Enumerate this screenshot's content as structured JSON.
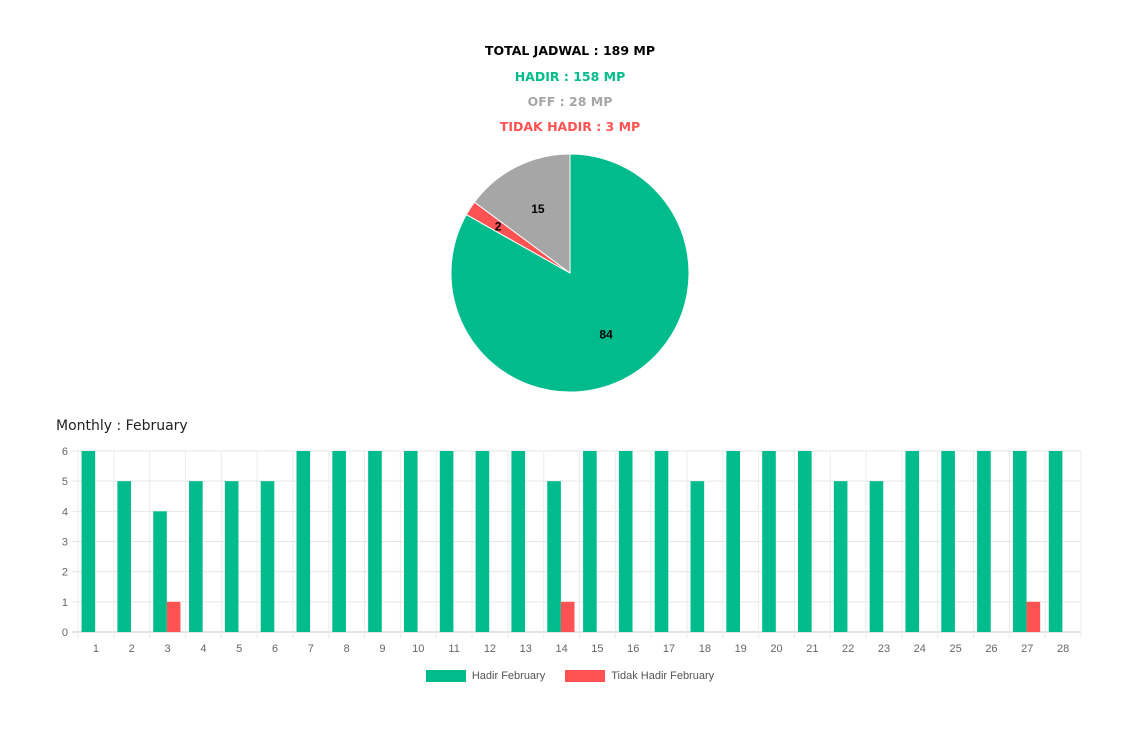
{
  "summary": {
    "total": "TOTAL JADWAL : 189 MP",
    "hadir": "HADIR : 158 MP",
    "off": "OFF : 28 MP",
    "tidak_hadir": "TIDAK HADIR : 3 MP"
  },
  "colors": {
    "hadir": "#00bc8c",
    "off": "#a6a6a6",
    "tidak_hadir": "#ff5252"
  },
  "monthly_title": "Monthly : February",
  "chart_data": [
    {
      "type": "pie",
      "slices": [
        {
          "label": "84",
          "value": 84,
          "color": "#00bc8c"
        },
        {
          "label": "2",
          "value": 2,
          "color": "#ff5252"
        },
        {
          "label": "15",
          "value": 15,
          "color": "#a6a6a6"
        }
      ]
    },
    {
      "type": "bar",
      "categories": [
        "1",
        "2",
        "3",
        "4",
        "5",
        "6",
        "7",
        "8",
        "9",
        "10",
        "11",
        "12",
        "13",
        "14",
        "15",
        "16",
        "17",
        "18",
        "19",
        "20",
        "21",
        "22",
        "23",
        "24",
        "25",
        "26",
        "27",
        "28"
      ],
      "series": [
        {
          "name": "Hadir February",
          "color": "#00bc8c",
          "values": [
            6,
            5,
            4,
            5,
            5,
            5,
            6,
            6,
            6,
            6,
            6,
            6,
            6,
            5,
            6,
            6,
            6,
            5,
            6,
            6,
            6,
            5,
            5,
            6,
            6,
            6,
            6,
            6
          ]
        },
        {
          "name": "Tidak Hadir February",
          "color": "#ff5252",
          "values": [
            0,
            0,
            1,
            0,
            0,
            0,
            0,
            0,
            0,
            0,
            0,
            0,
            0,
            1,
            0,
            0,
            0,
            0,
            0,
            0,
            0,
            0,
            0,
            0,
            0,
            0,
            1,
            0
          ]
        }
      ],
      "ylim": [
        0,
        6
      ],
      "yticks": [
        "0",
        "1",
        "2",
        "3",
        "4",
        "5",
        "6"
      ],
      "grid": true,
      "legend": "bottom"
    }
  ]
}
